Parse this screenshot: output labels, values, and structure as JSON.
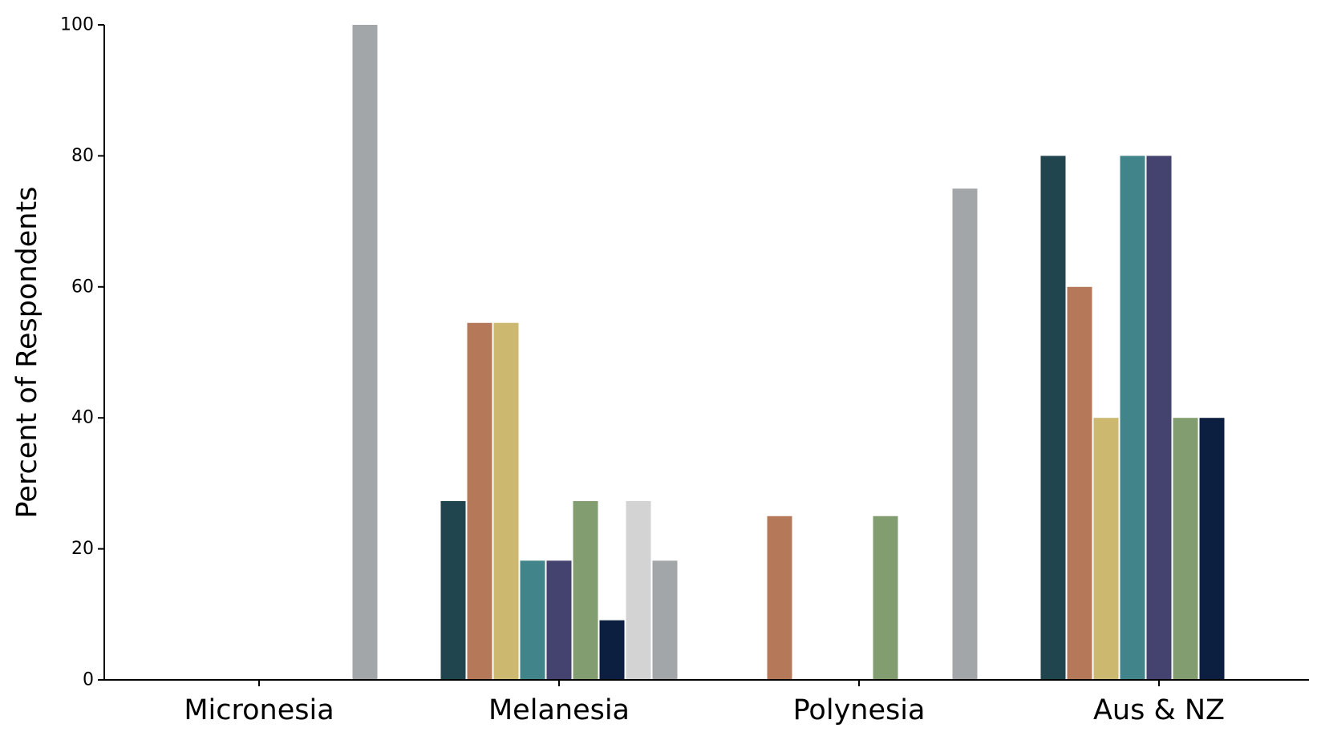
{
  "chart_data": {
    "type": "bar",
    "title": "",
    "xlabel": "",
    "ylabel": "Percent of Respondents",
    "ylim": [
      0,
      100
    ],
    "yticks": [
      0,
      20,
      40,
      60,
      80,
      100
    ],
    "grid": false,
    "legend": "none",
    "categories": [
      "Micronesia",
      "Melanesia",
      "Polynesia",
      "Aus & NZ"
    ],
    "series": [
      {
        "color": "#21454f",
        "values": [
          0,
          27.3,
          0,
          80
        ]
      },
      {
        "color": "#b5795a",
        "values": [
          0,
          54.5,
          25,
          60
        ]
      },
      {
        "color": "#cdb870",
        "values": [
          0,
          54.5,
          0,
          40
        ]
      },
      {
        "color": "#41848a",
        "values": [
          0,
          18.2,
          0,
          80
        ]
      },
      {
        "color": "#44436f",
        "values": [
          0,
          18.2,
          0,
          80
        ]
      },
      {
        "color": "#829e70",
        "values": [
          0,
          27.3,
          25,
          40
        ]
      },
      {
        "color": "#0c1f40",
        "values": [
          0,
          9.1,
          0,
          40
        ]
      },
      {
        "color": "#d3d3d3",
        "values": [
          0,
          27.3,
          0,
          0
        ]
      },
      {
        "color": "#a3a6a9",
        "values": [
          100,
          18.2,
          75,
          0
        ]
      }
    ]
  }
}
